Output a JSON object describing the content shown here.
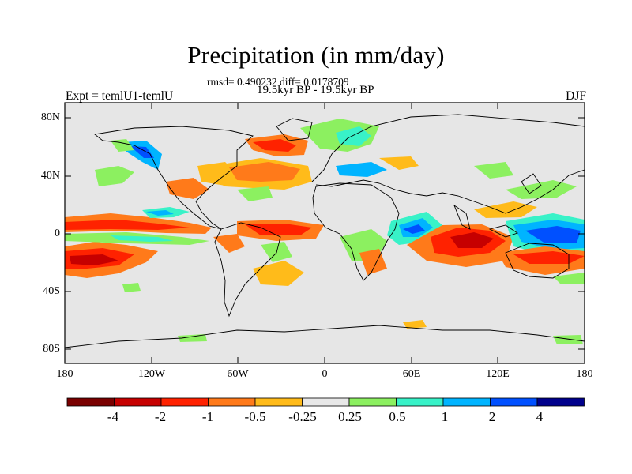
{
  "title": "Precipitation (in mm/day)",
  "subtitle_stats": "rmsd= 0.490232 diff= 0.0178709",
  "subtitle_period": "19.5kyr BP - 19.5kyr BP",
  "experiment": "Expt = temlU1-temlU",
  "season": "DJF",
  "y_ticks": [
    "80N",
    "40N",
    "0",
    "40S",
    "80S"
  ],
  "x_ticks": [
    "180",
    "120W",
    "60W",
    "0",
    "60E",
    "120E",
    "180"
  ],
  "colorbar": {
    "colors": [
      "#7a0000",
      "#c60000",
      "#ff2200",
      "#ff7a1a",
      "#ffbb1a",
      "#e8e8e8",
      "#8cf060",
      "#38f2c8",
      "#00b4ff",
      "#0050ff",
      "#00008c"
    ],
    "labels": [
      "-4",
      "-2",
      "-1",
      "-0.5",
      "-0.25",
      "0.25",
      "0.5",
      "1",
      "2",
      "4"
    ]
  },
  "colors": {
    "background": "#e6e6e6",
    "strong_dry": "#c60000",
    "dry": "#ff2200",
    "moderate_dry": "#ff7a1a",
    "weak_dry": "#ffbb1a",
    "weak_wet": "#8cf060",
    "moderate_wet": "#38f2c8",
    "wet": "#00b4ff",
    "strong_wet": "#0050ff"
  }
}
